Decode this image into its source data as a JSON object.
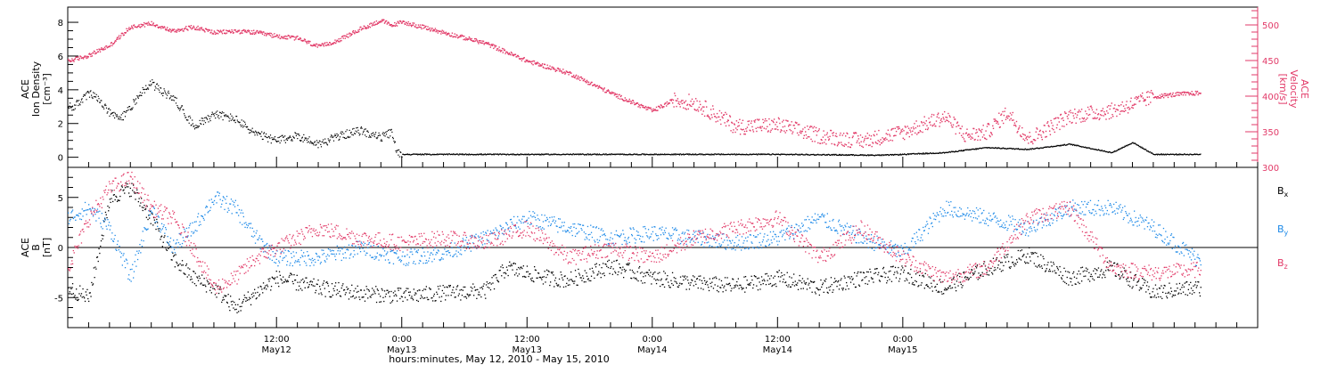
{
  "chart_data": [
    {
      "type": "scatter",
      "panel": "top",
      "xlabel": "hours:minutes, May 12, 2010 - May 15, 2010",
      "x_ticks": [
        {
          "time": "12:00",
          "day": "May12"
        },
        {
          "time": "0:00",
          "day": "May13"
        },
        {
          "time": "12:00",
          "day": "May13"
        },
        {
          "time": "0:00",
          "day": "May14"
        },
        {
          "time": "12:00",
          "day": "May14"
        },
        {
          "time": "0:00",
          "day": "May15"
        }
      ],
      "xlim_hours": [
        -8,
        106
      ],
      "ylabel_left": [
        "ACE",
        "Ion Density",
        "[cm⁻³]"
      ],
      "ylim_left": [
        -0.6,
        8.9
      ],
      "yticks_left": [
        "0",
        "2",
        "4",
        "6",
        "8"
      ],
      "ylabel_right": [
        "ACE",
        "Velocity",
        "[km/s]"
      ],
      "ylim_right": [
        300,
        525
      ],
      "yticks_right": [
        "300",
        "350",
        "400",
        "450",
        "500"
      ],
      "colors": {
        "density": "#000000",
        "velocity": "#e23a68"
      },
      "series": [
        {
          "axis": "left",
          "x": [
            -7.5,
            -6,
            -5,
            -4,
            -3,
            -2,
            -1,
            0,
            1,
            2,
            3,
            4,
            5,
            6,
            8,
            10,
            12,
            14,
            16,
            18,
            20,
            22,
            23,
            23.5,
            24,
            26,
            30,
            40,
            48,
            52,
            60,
            70,
            76,
            80,
            84,
            88,
            92,
            94,
            96,
            100
          ],
          "y": [
            3.0,
            3.8,
            3.4,
            2.6,
            2.3,
            3.0,
            3.9,
            4.4,
            3.9,
            3.6,
            2.8,
            1.9,
            2.2,
            2.6,
            2.3,
            1.4,
            1.0,
            1.3,
            0.8,
            1.3,
            1.6,
            1.2,
            1.5,
            0.3,
            0.2,
            0.2,
            0.2,
            0.2,
            0.2,
            0.2,
            0.2,
            0.15,
            0.3,
            0.6,
            0.5,
            0.8,
            0.3,
            0.9,
            0.2,
            0.2
          ]
        },
        {
          "axis": "right",
          "x": [
            -8,
            -6,
            -4,
            -2,
            0,
            2,
            4,
            6,
            8,
            10,
            12,
            14,
            16,
            18,
            20,
            22,
            23,
            24,
            28,
            32,
            36,
            40,
            44,
            48,
            50,
            52,
            56,
            60,
            64,
            68,
            72,
            76,
            78,
            80,
            82,
            84,
            88,
            92,
            96,
            98,
            100
          ],
          "y": [
            450,
            458,
            472,
            498,
            503,
            492,
            498,
            490,
            492,
            490,
            485,
            482,
            470,
            480,
            495,
            507,
            500,
            505,
            490,
            475,
            450,
            433,
            405,
            380,
            395,
            392,
            358,
            360,
            345,
            338,
            350,
            372,
            345,
            350,
            378,
            340,
            373,
            380,
            400,
            403,
            405
          ]
        }
      ]
    },
    {
      "type": "scatter",
      "panel": "bottom",
      "ylabel": [
        "ACE",
        "B",
        "[nT]"
      ],
      "ylim": [
        -8,
        8
      ],
      "yticks": [
        "-5",
        "0",
        "5"
      ],
      "xlim_hours": [
        -8,
        106
      ],
      "colors": {
        "Bx": "#000000",
        "By": "#1e8ae8",
        "Bz": "#e23a68"
      },
      "legend": [
        "Bx",
        "By",
        "Bz"
      ],
      "series": [
        {
          "name": "Bx",
          "x": [
            -8,
            -6,
            -4,
            -2,
            0,
            2,
            4,
            6,
            8,
            10,
            12,
            16,
            20,
            24,
            28,
            32,
            34,
            38,
            40,
            44,
            48,
            52,
            56,
            60,
            64,
            68,
            72,
            76,
            80,
            84,
            88,
            92,
            96,
            98,
            100
          ],
          "y": [
            -4,
            -5,
            5,
            6,
            3,
            -1,
            -3,
            -4,
            -6,
            -4.5,
            -3,
            -4,
            -4.5,
            -4.8,
            -4.5,
            -4.3,
            -2,
            -3,
            -3.2,
            -1.8,
            -3,
            -3.5,
            -3.8,
            -3,
            -4,
            -3,
            -2.5,
            -4,
            -2,
            -0.7,
            -3,
            -2,
            -4.5,
            -4.2,
            -4
          ]
        },
        {
          "name": "By",
          "x": [
            -8,
            -6,
            -4,
            -2,
            0,
            2,
            4,
            6,
            8,
            10,
            12,
            16,
            20,
            24,
            28,
            32,
            36,
            40,
            44,
            48,
            52,
            56,
            60,
            64,
            68,
            72,
            76,
            80,
            84,
            88,
            92,
            96,
            100
          ],
          "y": [
            3,
            4,
            2,
            -3,
            4,
            0,
            2,
            5,
            4,
            1,
            -1,
            -1,
            0,
            -1,
            -0.5,
            1,
            3,
            2,
            1,
            1.5,
            1,
            0.5,
            1,
            3,
            1,
            -0.5,
            4,
            3,
            2,
            4,
            4,
            2,
            -1
          ]
        },
        {
          "name": "Bz",
          "x": [
            -8,
            -6,
            -4,
            -2,
            0,
            2,
            4,
            6,
            8,
            10,
            12,
            16,
            20,
            24,
            28,
            32,
            36,
            40,
            44,
            48,
            52,
            56,
            60,
            64,
            68,
            72,
            76,
            80,
            84,
            88,
            92,
            96,
            100
          ],
          "y": [
            -2,
            3,
            6,
            7,
            4,
            3,
            0,
            -4,
            -3,
            -1,
            0,
            2,
            1,
            0.5,
            1,
            0.5,
            2,
            -1,
            0,
            -1,
            1,
            2,
            3,
            -1,
            2,
            -1,
            -3,
            -2,
            3,
            4,
            -2,
            -2.5,
            -2.2
          ]
        }
      ]
    }
  ]
}
